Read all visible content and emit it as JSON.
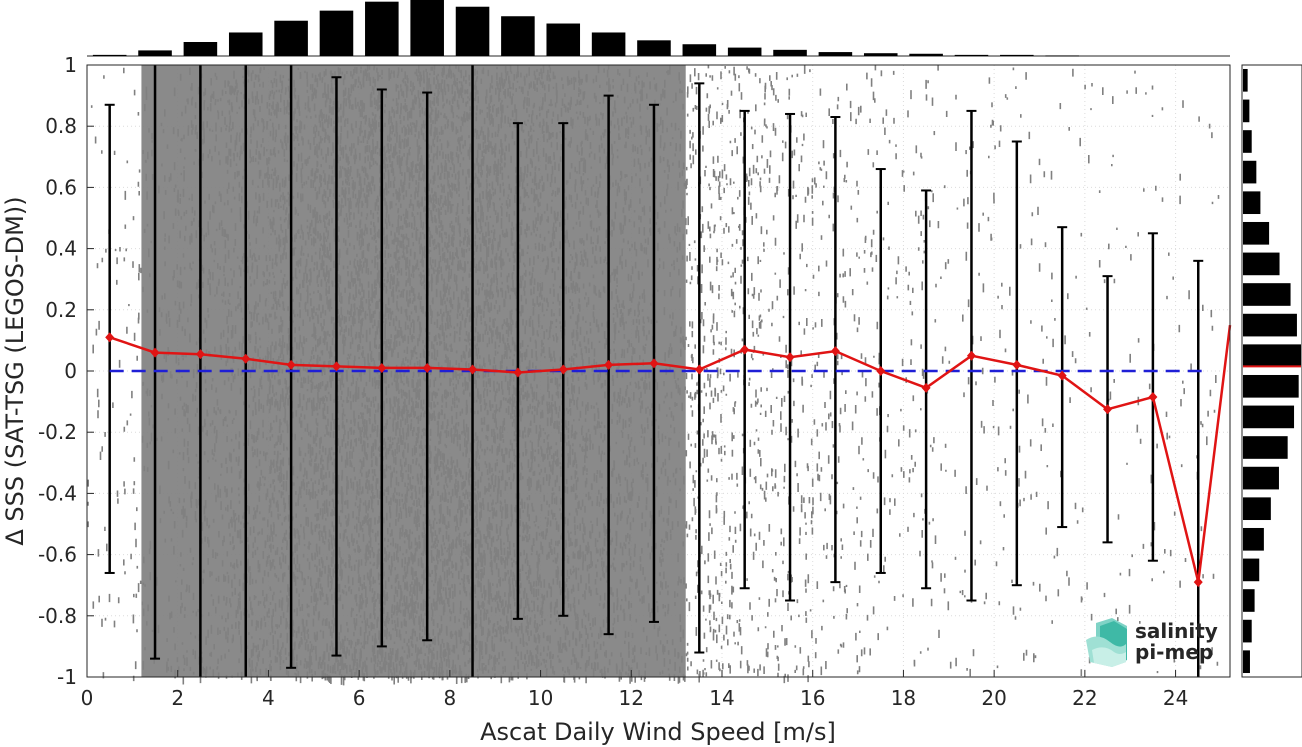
{
  "chart_data": {
    "type": "scatter",
    "xlabel": "Ascat Daily Wind Speed [m/s]",
    "ylabel": "Δ SSS (SAT-TSG (LEGOS-DM))",
    "xlim": [
      0,
      25.2
    ],
    "ylim": [
      -1,
      1
    ],
    "x_ticks": [
      0,
      2,
      4,
      6,
      8,
      10,
      12,
      14,
      16,
      18,
      20,
      22,
      24
    ],
    "y_ticks": [
      -1,
      -0.8,
      -0.6,
      -0.4,
      -0.2,
      0,
      0.2,
      0.4,
      0.6,
      0.8,
      1
    ],
    "y_tick_labels": [
      "-1",
      "-0.8",
      "-0.6",
      "-0.4",
      "-0.2",
      "0",
      "0.2",
      "0.4",
      "0.6",
      "0.8",
      "1"
    ],
    "grid": true,
    "scatter_color": "#808080",
    "reference_line": {
      "y": 0,
      "color": "#1f1fd6",
      "style": "dashed"
    },
    "mean_series": {
      "color": "#e01414",
      "x": [
        0.5,
        1.5,
        2.5,
        3.5,
        4.5,
        5.5,
        6.5,
        7.5,
        8.5,
        9.5,
        10.5,
        11.5,
        12.5,
        13.5,
        14.5,
        15.5,
        16.5,
        17.5,
        18.5,
        19.5,
        20.5,
        21.5,
        22.5,
        23.5,
        24.5,
        25.2
      ],
      "y": [
        0.11,
        0.06,
        0.055,
        0.04,
        0.02,
        0.015,
        0.01,
        0.01,
        0.005,
        -0.005,
        0.005,
        0.02,
        0.025,
        0.005,
        0.07,
        0.045,
        0.065,
        0.0,
        -0.055,
        0.05,
        0.02,
        -0.015,
        -0.125,
        -0.085,
        -0.69,
        0.15
      ]
    },
    "error_bars": {
      "color": "#000000",
      "x": [
        0.5,
        1.5,
        2.5,
        3.5,
        4.5,
        5.5,
        6.5,
        7.5,
        8.5,
        9.5,
        10.5,
        11.5,
        12.5,
        13.5,
        14.5,
        15.5,
        16.5,
        17.5,
        18.5,
        19.5,
        20.5,
        21.5,
        22.5,
        23.5,
        24.5
      ],
      "low": [
        -0.66,
        -0.94,
        -1.05,
        -1.05,
        -0.97,
        -0.93,
        -0.9,
        -0.88,
        -1.05,
        -0.81,
        -0.8,
        -0.86,
        -0.82,
        -0.92,
        -0.71,
        -0.75,
        -0.69,
        -0.66,
        -0.71,
        -0.75,
        -0.7,
        -0.51,
        -0.56,
        -0.62,
        -1.05
      ],
      "high": [
        0.87,
        1.05,
        1.05,
        1.05,
        1.05,
        0.96,
        0.92,
        0.91,
        1.05,
        0.81,
        0.81,
        0.9,
        0.87,
        0.94,
        0.85,
        0.84,
        0.83,
        0.66,
        0.59,
        0.85,
        0.75,
        0.47,
        0.31,
        0.45,
        0.36
      ]
    },
    "x_histogram": {
      "x": [
        0.5,
        1.5,
        2.5,
        3.5,
        4.5,
        5.5,
        6.5,
        7.5,
        8.5,
        9.5,
        10.5,
        11.5,
        12.5,
        13.5,
        14.5,
        15.5,
        16.5,
        17.5,
        18.5,
        19.5,
        20.5,
        21.5
      ],
      "values": [
        0.02,
        0.1,
        0.25,
        0.42,
        0.63,
        0.81,
        0.97,
        1.0,
        0.88,
        0.71,
        0.58,
        0.42,
        0.28,
        0.21,
        0.15,
        0.11,
        0.07,
        0.05,
        0.04,
        0.02,
        0.02,
        0.01
      ]
    },
    "y_histogram": {
      "centers": [
        -0.95,
        -0.85,
        -0.75,
        -0.65,
        -0.55,
        -0.45,
        -0.35,
        -0.25,
        -0.15,
        -0.05,
        0.05,
        0.15,
        0.25,
        0.35,
        0.45,
        0.55,
        0.65,
        0.75,
        0.85,
        0.95
      ],
      "values": [
        0.12,
        0.15,
        0.2,
        0.28,
        0.36,
        0.48,
        0.62,
        0.77,
        0.88,
        0.96,
        1.0,
        0.93,
        0.82,
        0.63,
        0.45,
        0.3,
        0.23,
        0.15,
        0.11,
        0.08
      ],
      "mean_marker_y": 0.015,
      "mean_marker_color": "#e01414"
    }
  },
  "logo": {
    "line1": "salinity",
    "line2": "pi-mep",
    "color": "#1aa89a"
  }
}
